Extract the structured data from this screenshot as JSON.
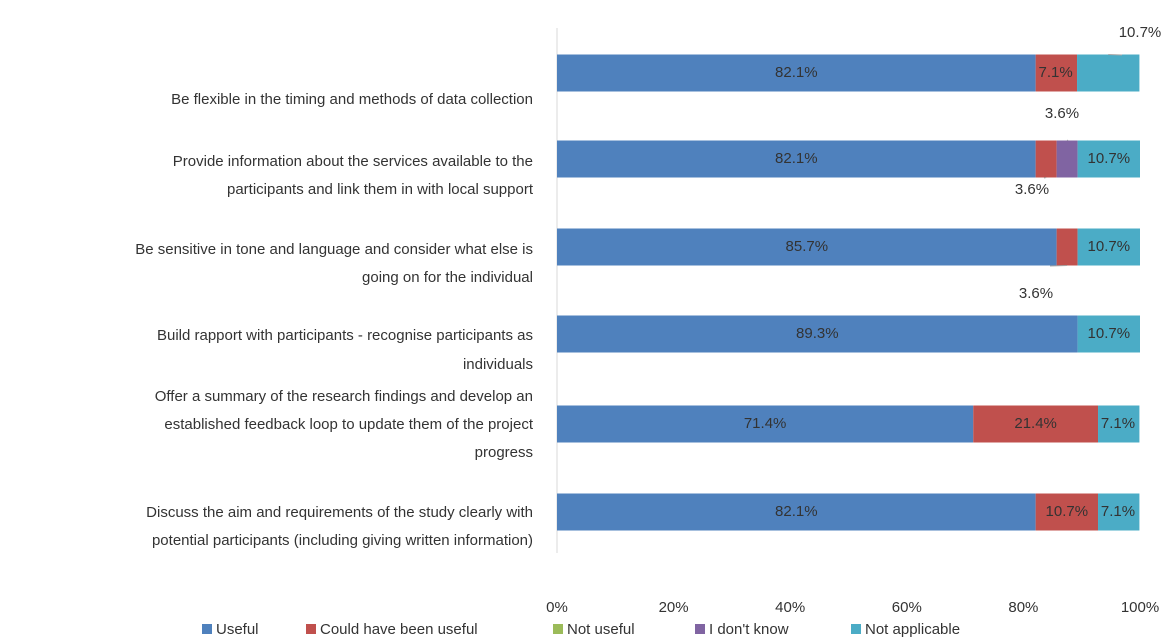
{
  "chart_data": {
    "type": "stacked-bar-horizontal",
    "categories": [
      [
        "Be flexible in the timing and methods of data collection"
      ],
      [
        "Provide information about the services available to the",
        "participants and link them in with local support"
      ],
      [
        "Be sensitive in tone and language and consider what else is",
        "going on for the individual"
      ],
      [
        "Build rapport with participants - recognise participants as",
        "individuals"
      ],
      [
        "Offer a summary of the research findings and develop an",
        "established feedback loop to update them of the project",
        "progress"
      ],
      [
        "Discuss the aim and requirements of the study clearly with",
        "potential participants (including giving written information)"
      ]
    ],
    "series": [
      {
        "name": "Useful",
        "color": "#4f81bd",
        "values": [
          82.1,
          82.1,
          85.7,
          89.3,
          71.4,
          82.1
        ],
        "value_labels": [
          "82.1%",
          "82.1%",
          "85.7%",
          "89.3%",
          "71.4%",
          "82.1%"
        ]
      },
      {
        "name": "Could have been useful",
        "color": "#c0504d",
        "values": [
          7.1,
          3.6,
          3.6,
          0,
          21.4,
          10.7
        ],
        "value_labels": [
          "7.1%",
          "3.6%",
          "3.6%",
          null,
          "21.4%",
          "10.7%"
        ]
      },
      {
        "name": "Not useful",
        "color": "#9bbb59",
        "values": [
          0,
          0,
          0,
          0,
          0,
          0
        ],
        "value_labels": [
          null,
          null,
          null,
          null,
          null,
          null
        ]
      },
      {
        "name": "I don't know",
        "color": "#8064a2",
        "values": [
          0,
          3.6,
          0,
          0,
          0,
          0
        ],
        "value_labels": [
          null,
          "3.6%",
          null,
          null,
          null,
          null
        ]
      },
      {
        "name": "Not applicable",
        "color": "#4bacc6",
        "values": [
          10.7,
          10.7,
          10.7,
          10.7,
          7.1,
          7.1
        ],
        "value_labels": [
          "10.7%",
          "10.7%",
          "10.7%",
          "10.7%",
          "7.1%",
          "7.1%"
        ]
      }
    ],
    "xlim": [
      0,
      100
    ],
    "xticks": [
      {
        "value": 0,
        "label": "0%"
      },
      {
        "value": 20,
        "label": "20%"
      },
      {
        "value": 40,
        "label": "40%"
      },
      {
        "value": 60,
        "label": "60%"
      },
      {
        "value": 80,
        "label": "80%"
      },
      {
        "value": 100,
        "label": "100%"
      }
    ],
    "legend": "bottom"
  }
}
